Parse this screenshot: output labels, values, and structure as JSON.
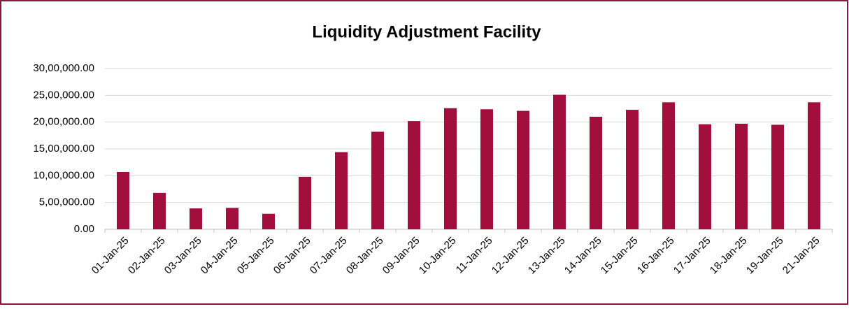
{
  "chart_data": {
    "type": "bar",
    "title": "Liquidity Adjustment Facility",
    "categories": [
      "01-Jan-25",
      "02-Jan-25",
      "03-Jan-25",
      "04-Jan-25",
      "05-Jan-25",
      "06-Jan-25",
      "07-Jan-25",
      "08-Jan-25",
      "09-Jan-25",
      "10-Jan-25",
      "11-Jan-25",
      "12-Jan-25",
      "13-Jan-25",
      "14-Jan-25",
      "15-Jan-25",
      "16-Jan-25",
      "17-Jan-25",
      "18-Jan-25",
      "19-Jan-25",
      "21-Jan-25"
    ],
    "values": [
      1070000,
      680000,
      390000,
      400000,
      290000,
      980000,
      1440000,
      1820000,
      2020000,
      2260000,
      2240000,
      2210000,
      2510000,
      2100000,
      2230000,
      2370000,
      1960000,
      1970000,
      1950000,
      2370000
    ],
    "color": "#a20f3c",
    "ylim": [
      0,
      3000000
    ],
    "yticks": [
      {
        "value": 0,
        "label": "0.00"
      },
      {
        "value": 500000,
        "label": "5,00,000.00"
      },
      {
        "value": 1000000,
        "label": "10,00,000.00"
      },
      {
        "value": 1500000,
        "label": "15,00,000.00"
      },
      {
        "value": 2000000,
        "label": "20,00,000.00"
      },
      {
        "value": 2500000,
        "label": "25,00,000.00"
      },
      {
        "value": 3000000,
        "label": "30,00,000.00"
      }
    ],
    "grid": true
  }
}
